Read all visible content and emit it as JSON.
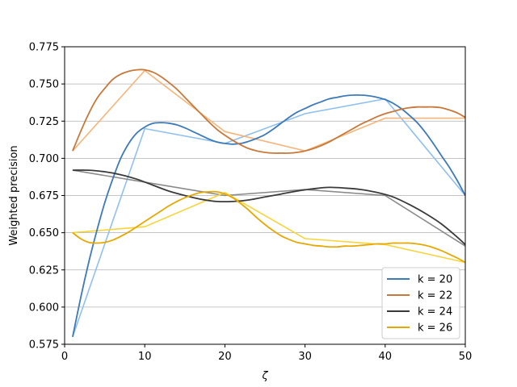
{
  "chart_data": {
    "type": "line",
    "xlabel": "ζ",
    "ylabel": "Weighted precision",
    "xlim": [
      0,
      50
    ],
    "ylim": [
      0.575,
      0.775
    ],
    "x_ticks": [
      0,
      10,
      20,
      30,
      40,
      50
    ],
    "y_ticks": [
      0.575,
      0.6,
      0.625,
      0.65,
      0.675,
      0.7,
      0.725,
      0.75,
      0.775
    ],
    "x_tick_labels": [
      "0",
      "10",
      "20",
      "30",
      "40",
      "50"
    ],
    "y_tick_labels": [
      "0.575",
      "0.600",
      "0.625",
      "0.650",
      "0.675",
      "0.700",
      "0.725",
      "0.750",
      "0.775"
    ],
    "grid": "horizontal",
    "legend_position": "lower-right",
    "x": [
      1,
      10,
      20,
      30,
      40,
      50
    ],
    "series": [
      {
        "name": "k = 20",
        "color": "#3d7ab8",
        "raw_color": "#8fc0f0",
        "values": [
          0.58,
          0.72,
          0.71,
          0.73,
          0.74,
          0.675
        ],
        "smooth": [
          [
            1,
            0.58
          ],
          [
            2,
            0.606
          ],
          [
            3,
            0.63
          ],
          [
            4,
            0.651
          ],
          [
            5,
            0.67
          ],
          [
            6,
            0.686
          ],
          [
            7,
            0.7
          ],
          [
            8,
            0.71
          ],
          [
            9,
            0.717
          ],
          [
            10,
            0.721
          ],
          [
            11,
            0.7235
          ],
          [
            12,
            0.724
          ],
          [
            13,
            0.7236
          ],
          [
            14,
            0.7225
          ],
          [
            15,
            0.7205
          ],
          [
            16,
            0.718
          ],
          [
            17,
            0.7155
          ],
          [
            18,
            0.713
          ],
          [
            19,
            0.711
          ],
          [
            20,
            0.71
          ],
          [
            21,
            0.7095
          ],
          [
            22,
            0.71
          ],
          [
            23,
            0.7115
          ],
          [
            24,
            0.7135
          ],
          [
            25,
            0.716
          ],
          [
            26,
            0.7195
          ],
          [
            27,
            0.7235
          ],
          [
            28,
            0.7275
          ],
          [
            29,
            0.731
          ],
          [
            30,
            0.7335
          ],
          [
            31,
            0.736
          ],
          [
            32,
            0.738
          ],
          [
            33,
            0.74
          ],
          [
            34,
            0.741
          ],
          [
            35,
            0.742
          ],
          [
            36,
            0.7425
          ],
          [
            37,
            0.7425
          ],
          [
            38,
            0.742
          ],
          [
            39,
            0.741
          ],
          [
            40,
            0.7395
          ],
          [
            41,
            0.737
          ],
          [
            42,
            0.7335
          ],
          [
            43,
            0.729
          ],
          [
            44,
            0.724
          ],
          [
            45,
            0.7175
          ],
          [
            46,
            0.71
          ],
          [
            47,
            0.702
          ],
          [
            48,
            0.694
          ],
          [
            49,
            0.685
          ],
          [
            50,
            0.675
          ]
        ]
      },
      {
        "name": "k = 22",
        "color": "#c8783a",
        "raw_color": "#f6b57a",
        "values": [
          0.705,
          0.759,
          0.718,
          0.705,
          0.727,
          0.727
        ],
        "smooth": [
          [
            1,
            0.705
          ],
          [
            2,
            0.718
          ],
          [
            3,
            0.73
          ],
          [
            4,
            0.74
          ],
          [
            5,
            0.747
          ],
          [
            6,
            0.753
          ],
          [
            7,
            0.7565
          ],
          [
            8,
            0.7585
          ],
          [
            9,
            0.7595
          ],
          [
            10,
            0.7595
          ],
          [
            11,
            0.758
          ],
          [
            12,
            0.755
          ],
          [
            13,
            0.751
          ],
          [
            14,
            0.7465
          ],
          [
            15,
            0.741
          ],
          [
            16,
            0.7355
          ],
          [
            17,
            0.73
          ],
          [
            18,
            0.7245
          ],
          [
            19,
            0.7195
          ],
          [
            20,
            0.7155
          ],
          [
            21,
            0.712
          ],
          [
            22,
            0.709
          ],
          [
            23,
            0.7065
          ],
          [
            24,
            0.705
          ],
          [
            25,
            0.704
          ],
          [
            26,
            0.7035
          ],
          [
            27,
            0.7035
          ],
          [
            28,
            0.7035
          ],
          [
            29,
            0.704
          ],
          [
            30,
            0.705
          ],
          [
            31,
            0.7065
          ],
          [
            32,
            0.7085
          ],
          [
            33,
            0.711
          ],
          [
            34,
            0.714
          ],
          [
            35,
            0.717
          ],
          [
            36,
            0.72
          ],
          [
            37,
            0.723
          ],
          [
            38,
            0.7255
          ],
          [
            39,
            0.728
          ],
          [
            40,
            0.73
          ],
          [
            41,
            0.7315
          ],
          [
            42,
            0.733
          ],
          [
            43,
            0.734
          ],
          [
            44,
            0.7345
          ],
          [
            45,
            0.7345
          ],
          [
            46,
            0.7345
          ],
          [
            47,
            0.734
          ],
          [
            48,
            0.7325
          ],
          [
            49,
            0.7305
          ],
          [
            50,
            0.7275
          ]
        ]
      },
      {
        "name": "k = 24",
        "color": "#3a3a3a",
        "raw_color": "#8a8a8a",
        "values": [
          0.692,
          0.684,
          0.675,
          0.679,
          0.675,
          0.641
        ],
        "smooth": [
          [
            1,
            0.692
          ],
          [
            3,
            0.692
          ],
          [
            5,
            0.691
          ],
          [
            7,
            0.689
          ],
          [
            9,
            0.686
          ],
          [
            11,
            0.682
          ],
          [
            13,
            0.678
          ],
          [
            15,
            0.675
          ],
          [
            17,
            0.6725
          ],
          [
            19,
            0.671
          ],
          [
            21,
            0.671
          ],
          [
            23,
            0.672
          ],
          [
            25,
            0.674
          ],
          [
            27,
            0.676
          ],
          [
            29,
            0.678
          ],
          [
            31,
            0.6795
          ],
          [
            33,
            0.6805
          ],
          [
            35,
            0.68
          ],
          [
            37,
            0.679
          ],
          [
            39,
            0.677
          ],
          [
            41,
            0.674
          ],
          [
            43,
            0.669
          ],
          [
            45,
            0.663
          ],
          [
            47,
            0.656
          ],
          [
            49,
            0.647
          ],
          [
            50,
            0.642
          ]
        ]
      },
      {
        "name": "k = 26",
        "color": "#e6a800",
        "raw_color": "#f7d43a",
        "values": [
          0.65,
          0.654,
          0.677,
          0.646,
          0.642,
          0.63
        ],
        "smooth": [
          [
            1,
            0.65
          ],
          [
            2,
            0.646
          ],
          [
            3,
            0.6435
          ],
          [
            4,
            0.643
          ],
          [
            5,
            0.6435
          ],
          [
            6,
            0.645
          ],
          [
            7,
            0.6475
          ],
          [
            8,
            0.6505
          ],
          [
            9,
            0.654
          ],
          [
            10,
            0.6575
          ],
          [
            11,
            0.661
          ],
          [
            12,
            0.6645
          ],
          [
            13,
            0.668
          ],
          [
            14,
            0.671
          ],
          [
            15,
            0.6735
          ],
          [
            16,
            0.6755
          ],
          [
            17,
            0.677
          ],
          [
            18,
            0.6775
          ],
          [
            19,
            0.6775
          ],
          [
            20,
            0.676
          ],
          [
            21,
            0.6735
          ],
          [
            22,
            0.6695
          ],
          [
            23,
            0.665
          ],
          [
            24,
            0.66
          ],
          [
            25,
            0.6555
          ],
          [
            26,
            0.6515
          ],
          [
            27,
            0.648
          ],
          [
            28,
            0.6455
          ],
          [
            29,
            0.6435
          ],
          [
            30,
            0.6425
          ],
          [
            31,
            0.6415
          ],
          [
            32,
            0.641
          ],
          [
            33,
            0.6405
          ],
          [
            34,
            0.6405
          ],
          [
            35,
            0.641
          ],
          [
            36,
            0.641
          ],
          [
            37,
            0.6415
          ],
          [
            38,
            0.642
          ],
          [
            39,
            0.6425
          ],
          [
            40,
            0.6425
          ],
          [
            41,
            0.643
          ],
          [
            42,
            0.643
          ],
          [
            43,
            0.643
          ],
          [
            44,
            0.6425
          ],
          [
            45,
            0.6415
          ],
          [
            46,
            0.64
          ],
          [
            47,
            0.638
          ],
          [
            48,
            0.6355
          ],
          [
            49,
            0.633
          ],
          [
            50,
            0.63
          ]
        ]
      }
    ]
  }
}
